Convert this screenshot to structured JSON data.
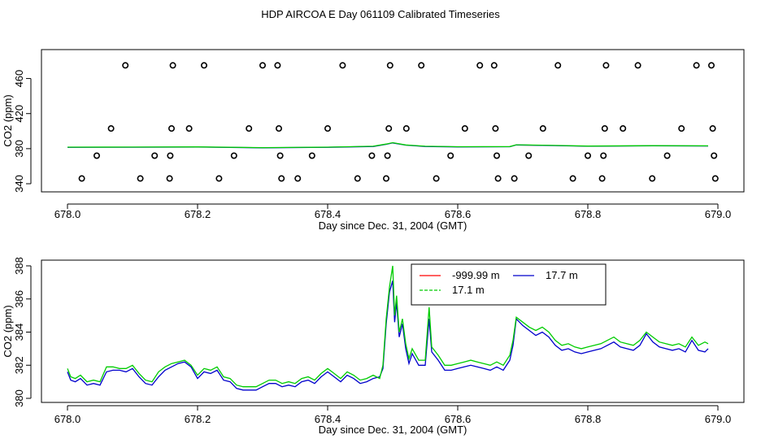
{
  "title": "HDP AIRCOA E  Day 061109  Calibrated Timeseries",
  "colors": {
    "red": "#ff0000",
    "green": "#00cc00",
    "blue": "#0000cc",
    "points": "#000000"
  },
  "chart_data": [
    {
      "type": "scatter",
      "xlabel": "Day since Dec. 31, 2004 (GMT)",
      "ylabel": "CO2 (ppm)",
      "xlim": [
        678.0,
        679.0
      ],
      "ylim": [
        340,
        480
      ],
      "xticks": [
        "678.0",
        "678.2",
        "678.4",
        "678.6",
        "678.8",
        "679.0"
      ],
      "yticks": [
        "340",
        "380",
        "420",
        "460"
      ],
      "ytick_values": [
        340,
        380,
        420,
        460
      ],
      "xtick_values": [
        678.0,
        678.2,
        678.4,
        678.6,
        678.8,
        679.0
      ],
      "points": [
        {
          "x": 678.022,
          "y": 346
        },
        {
          "x": 678.045,
          "y": 372
        },
        {
          "x": 678.067,
          "y": 403
        },
        {
          "x": 678.089,
          "y": 475
        },
        {
          "x": 678.112,
          "y": 346
        },
        {
          "x": 678.134,
          "y": 372
        },
        {
          "x": 678.157,
          "y": 346
        },
        {
          "x": 678.158,
          "y": 372
        },
        {
          "x": 678.16,
          "y": 403
        },
        {
          "x": 678.162,
          "y": 475
        },
        {
          "x": 678.187,
          "y": 403
        },
        {
          "x": 678.21,
          "y": 475
        },
        {
          "x": 678.233,
          "y": 346
        },
        {
          "x": 678.256,
          "y": 372
        },
        {
          "x": 678.279,
          "y": 403
        },
        {
          "x": 678.3,
          "y": 475
        },
        {
          "x": 678.323,
          "y": 475
        },
        {
          "x": 678.325,
          "y": 403
        },
        {
          "x": 678.327,
          "y": 372
        },
        {
          "x": 678.329,
          "y": 346
        },
        {
          "x": 678.354,
          "y": 346
        },
        {
          "x": 678.376,
          "y": 372
        },
        {
          "x": 678.4,
          "y": 403
        },
        {
          "x": 678.423,
          "y": 475
        },
        {
          "x": 678.446,
          "y": 346
        },
        {
          "x": 678.468,
          "y": 372
        },
        {
          "x": 678.49,
          "y": 346
        },
        {
          "x": 678.492,
          "y": 372
        },
        {
          "x": 678.494,
          "y": 403
        },
        {
          "x": 678.496,
          "y": 475
        },
        {
          "x": 678.521,
          "y": 403
        },
        {
          "x": 678.544,
          "y": 475
        },
        {
          "x": 678.567,
          "y": 346
        },
        {
          "x": 678.589,
          "y": 372
        },
        {
          "x": 678.611,
          "y": 403
        },
        {
          "x": 678.634,
          "y": 475
        },
        {
          "x": 678.656,
          "y": 475
        },
        {
          "x": 678.658,
          "y": 403
        },
        {
          "x": 678.66,
          "y": 372
        },
        {
          "x": 678.662,
          "y": 346
        },
        {
          "x": 678.687,
          "y": 346
        },
        {
          "x": 678.709,
          "y": 372
        },
        {
          "x": 678.731,
          "y": 403
        },
        {
          "x": 678.754,
          "y": 475
        },
        {
          "x": 678.777,
          "y": 346
        },
        {
          "x": 678.8,
          "y": 372
        },
        {
          "x": 678.822,
          "y": 346
        },
        {
          "x": 678.824,
          "y": 372
        },
        {
          "x": 678.826,
          "y": 403
        },
        {
          "x": 678.828,
          "y": 475
        },
        {
          "x": 678.854,
          "y": 403
        },
        {
          "x": 678.877,
          "y": 475
        },
        {
          "x": 678.899,
          "y": 346
        },
        {
          "x": 678.922,
          "y": 372
        },
        {
          "x": 678.944,
          "y": 403
        },
        {
          "x": 678.967,
          "y": 475
        },
        {
          "x": 678.99,
          "y": 475
        },
        {
          "x": 678.992,
          "y": 403
        },
        {
          "x": 678.994,
          "y": 372
        },
        {
          "x": 678.996,
          "y": 346
        }
      ],
      "series": [
        {
          "name": "17.7 m",
          "color": "#0000cc",
          "x": [
            678.0,
            678.1,
            678.2,
            678.3,
            678.4,
            678.47,
            678.49,
            678.5,
            678.52,
            678.55,
            678.6,
            678.68,
            678.69,
            678.75,
            678.8,
            678.9,
            678.985
          ],
          "y": [
            381.5,
            381.6,
            381.8,
            381.0,
            381.5,
            382.5,
            385.0,
            386.5,
            384.0,
            382.5,
            382.0,
            382.2,
            384.2,
            383.5,
            382.7,
            383.2,
            383.0
          ]
        },
        {
          "name": "17.1 m",
          "color": "#00cc00",
          "x": [
            678.0,
            678.1,
            678.2,
            678.3,
            678.4,
            678.47,
            678.49,
            678.5,
            678.52,
            678.55,
            678.6,
            678.68,
            678.69,
            678.75,
            678.8,
            678.9,
            678.985
          ],
          "y": [
            381.7,
            381.8,
            382.0,
            381.2,
            381.7,
            382.7,
            385.2,
            386.8,
            384.2,
            382.7,
            382.2,
            382.4,
            384.4,
            383.7,
            382.9,
            383.4,
            383.2
          ]
        }
      ]
    },
    {
      "type": "line",
      "xlabel": "Day since Dec. 31, 2004 (GMT)",
      "ylabel": "CO2 (ppm)",
      "xlim": [
        678.0,
        679.0
      ],
      "ylim": [
        380,
        388
      ],
      "xticks": [
        "678.0",
        "678.2",
        "678.4",
        "678.6",
        "678.8",
        "679.0"
      ],
      "xtick_values": [
        678.0,
        678.2,
        678.4,
        678.6,
        678.8,
        679.0
      ],
      "yticks": [
        "380",
        "382",
        "384",
        "386",
        "388"
      ],
      "ytick_values": [
        380,
        382,
        384,
        386,
        388
      ],
      "legend": [
        {
          "label": "-999.99 m",
          "color": "#ff0000"
        },
        {
          "label": "17.7 m",
          "color": "#0000cc"
        },
        {
          "label": "17.1 m",
          "color": "#00cc00"
        }
      ],
      "legend_position": "top-center",
      "series": [
        {
          "name": "17.7 m",
          "color": "#0000cc",
          "x": [
            678.0,
            678.005,
            678.012,
            678.02,
            678.03,
            678.04,
            678.05,
            678.06,
            678.07,
            678.08,
            678.09,
            678.1,
            678.11,
            678.12,
            678.13,
            678.14,
            678.15,
            678.16,
            678.17,
            678.18,
            678.19,
            678.2,
            678.21,
            678.22,
            678.23,
            678.24,
            678.25,
            678.26,
            678.27,
            678.28,
            678.29,
            678.3,
            678.31,
            678.32,
            678.33,
            678.34,
            678.35,
            678.36,
            678.37,
            678.38,
            678.39,
            678.4,
            678.41,
            678.42,
            678.43,
            678.44,
            678.45,
            678.46,
            678.47,
            678.48,
            678.485,
            678.49,
            678.495,
            678.5,
            678.503,
            678.506,
            678.51,
            678.515,
            678.52,
            678.525,
            678.53,
            678.54,
            678.55,
            678.556,
            678.56,
            678.57,
            678.58,
            678.59,
            678.6,
            678.61,
            678.62,
            678.63,
            678.64,
            678.65,
            678.66,
            678.67,
            678.68,
            678.685,
            678.69,
            678.7,
            678.71,
            678.72,
            678.73,
            678.74,
            678.75,
            678.76,
            678.77,
            678.78,
            678.79,
            678.8,
            678.81,
            678.82,
            678.83,
            678.84,
            678.85,
            678.86,
            678.87,
            678.88,
            678.89,
            678.9,
            678.91,
            678.92,
            678.93,
            678.94,
            678.95,
            678.96,
            678.97,
            678.98,
            678.985
          ],
          "y": [
            381.6,
            381.1,
            381.0,
            381.2,
            380.8,
            380.9,
            380.8,
            381.6,
            381.7,
            381.7,
            381.6,
            381.8,
            381.3,
            380.9,
            380.8,
            381.3,
            381.7,
            381.9,
            382.1,
            382.2,
            381.9,
            381.2,
            381.6,
            381.5,
            381.7,
            381.1,
            381.0,
            380.6,
            380.5,
            380.5,
            380.5,
            380.7,
            380.9,
            380.9,
            380.7,
            380.8,
            380.7,
            381.0,
            381.1,
            380.9,
            381.3,
            381.6,
            381.3,
            381.0,
            381.4,
            381.2,
            380.9,
            381.0,
            381.2,
            381.3,
            381.8,
            384.5,
            386.4,
            387.1,
            384.6,
            385.8,
            383.7,
            384.5,
            383.0,
            382.1,
            382.7,
            382.0,
            382.0,
            384.8,
            382.8,
            382.3,
            381.7,
            381.7,
            381.8,
            381.9,
            382.0,
            381.9,
            381.8,
            381.7,
            381.9,
            381.7,
            382.3,
            383.2,
            384.8,
            384.4,
            384.1,
            383.8,
            384.0,
            383.7,
            383.2,
            382.9,
            383.0,
            382.8,
            382.7,
            382.8,
            382.9,
            383.0,
            383.2,
            383.4,
            383.1,
            383.0,
            382.9,
            383.2,
            383.9,
            383.4,
            383.1,
            383.0,
            382.9,
            383.0,
            382.8,
            383.5,
            382.9,
            382.8,
            383.0
          ]
        },
        {
          "name": "17.1 m",
          "color": "#00cc00",
          "x": [
            678.0,
            678.005,
            678.012,
            678.02,
            678.03,
            678.04,
            678.05,
            678.06,
            678.07,
            678.08,
            678.09,
            678.1,
            678.11,
            678.12,
            678.13,
            678.14,
            678.15,
            678.16,
            678.17,
            678.18,
            678.19,
            678.2,
            678.21,
            678.22,
            678.23,
            678.24,
            678.25,
            678.26,
            678.27,
            678.28,
            678.29,
            678.3,
            678.31,
            678.32,
            678.33,
            678.34,
            678.35,
            678.36,
            678.37,
            678.38,
            678.39,
            678.4,
            678.41,
            678.42,
            678.43,
            678.44,
            678.45,
            678.46,
            678.47,
            678.48,
            678.485,
            678.49,
            678.495,
            678.5,
            678.503,
            678.506,
            678.51,
            678.515,
            678.52,
            678.525,
            678.53,
            678.54,
            678.55,
            678.556,
            678.56,
            678.57,
            678.58,
            678.59,
            678.6,
            678.61,
            678.62,
            678.63,
            678.64,
            678.65,
            678.66,
            678.67,
            678.68,
            678.685,
            678.69,
            678.7,
            678.71,
            678.72,
            678.73,
            678.74,
            678.75,
            678.76,
            678.77,
            678.78,
            678.79,
            678.8,
            678.81,
            678.82,
            678.83,
            678.84,
            678.85,
            678.86,
            678.87,
            678.88,
            678.89,
            678.9,
            678.91,
            678.92,
            678.93,
            678.94,
            678.95,
            678.96,
            678.97,
            678.98,
            678.985
          ],
          "y": [
            381.8,
            381.3,
            381.2,
            381.4,
            381.0,
            381.1,
            381.0,
            381.9,
            381.9,
            381.8,
            381.8,
            382.0,
            381.5,
            381.1,
            381.0,
            381.6,
            381.9,
            382.1,
            382.2,
            382.3,
            382.0,
            381.4,
            381.8,
            381.7,
            381.9,
            381.3,
            381.2,
            380.8,
            380.7,
            380.7,
            380.7,
            380.9,
            381.1,
            381.1,
            380.9,
            381.0,
            380.9,
            381.2,
            381.3,
            381.1,
            381.5,
            381.8,
            381.5,
            381.2,
            381.6,
            381.4,
            381.1,
            381.2,
            381.4,
            381.2,
            382.0,
            384.8,
            386.7,
            388.0,
            385.0,
            386.2,
            384.0,
            384.8,
            383.3,
            382.4,
            383.0,
            382.3,
            382.3,
            385.5,
            383.1,
            382.6,
            382.0,
            382.0,
            382.1,
            382.2,
            382.3,
            382.2,
            382.1,
            382.0,
            382.2,
            382.0,
            382.6,
            383.5,
            384.9,
            384.6,
            384.3,
            384.1,
            384.3,
            384.0,
            383.5,
            383.2,
            383.3,
            383.1,
            383.0,
            383.1,
            383.2,
            383.3,
            383.5,
            383.7,
            383.4,
            383.3,
            383.2,
            383.5,
            384.0,
            383.7,
            383.4,
            383.3,
            383.2,
            383.3,
            383.1,
            383.7,
            383.2,
            383.4,
            383.3
          ]
        }
      ]
    }
  ]
}
